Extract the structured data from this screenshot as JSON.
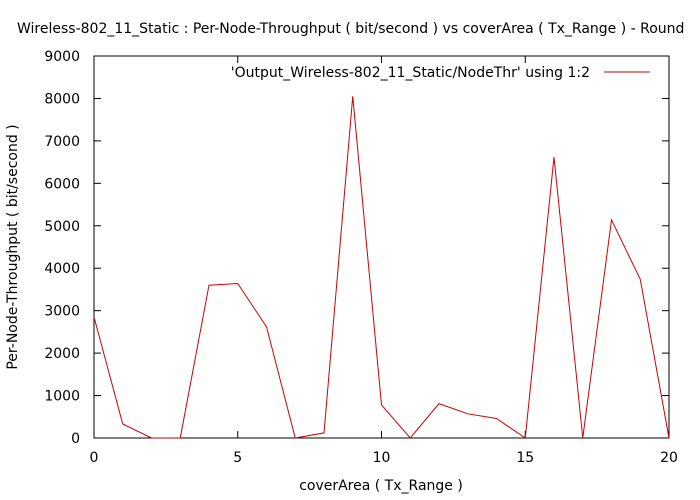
{
  "chart_data": {
    "type": "line",
    "title": "Wireless-802_11_Static : Per-Node-Throughput ( bit/second ) vs coverArea ( Tx_Range ) - Round",
    "xlabel": "coverArea ( Tx_Range )",
    "ylabel": "Per-Node-Throughput ( bit/second )",
    "xlim": [
      0,
      20
    ],
    "ylim": [
      0,
      9000
    ],
    "xticks": [
      0,
      5,
      10,
      15,
      20
    ],
    "yticks": [
      0,
      1000,
      2000,
      3000,
      4000,
      5000,
      6000,
      7000,
      8000,
      9000
    ],
    "grid": false,
    "legend_position": "top-right",
    "series": [
      {
        "name": "'Output_Wireless-802_11_Static/NodeThr' using 1:2",
        "color": "#cc0000",
        "x": [
          0,
          1,
          2,
          3,
          4,
          5,
          6,
          7,
          8,
          9,
          10,
          11,
          12,
          13,
          14,
          15,
          16,
          17,
          18,
          19,
          20
        ],
        "y": [
          2850,
          330,
          0,
          0,
          3600,
          3640,
          2620,
          0,
          120,
          8050,
          780,
          0,
          810,
          570,
          460,
          0,
          6620,
          0,
          5140,
          3740,
          0
        ]
      }
    ]
  }
}
